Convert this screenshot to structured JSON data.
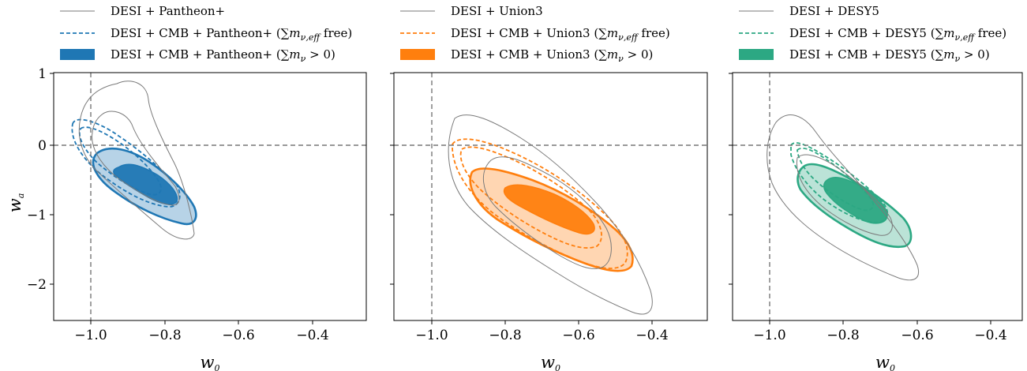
{
  "chart_data": [
    {
      "type": "contour",
      "xlabel": "w0",
      "ylabel": "wa",
      "xlim": [
        -1.1,
        -0.25
      ],
      "ylim": [
        -2.5,
        1.0
      ],
      "xticks": [
        "−1.0",
        "−0.8",
        "−0.6",
        "−0.4"
      ],
      "yticks": [
        "1",
        "0",
        "−1",
        "−2"
      ],
      "reference_lines": {
        "w0": -1.0,
        "wa": 0.0
      },
      "color": "#1f77b4",
      "legend_placement": "above",
      "series": [
        {
          "name": "DESI + Pantheon+",
          "style": "solid-gray-outline",
          "center": [
            -0.86,
            -0.35
          ],
          "outer": {
            "w0_range": [
              -1.03,
              -0.72
            ],
            "wa_range": [
              -1.35,
              0.9
            ]
          }
        },
        {
          "name": "DESI + CMB + Pantheon+ (∑m_ν,eff free)",
          "style": "dashed",
          "center": [
            -0.88,
            -0.24
          ],
          "outer": {
            "w0_range": [
              -1.01,
              -0.75
            ],
            "wa_range": [
              -0.95,
              0.27
            ]
          }
        },
        {
          "name": "DESI + CMB + Pantheon+ (∑m_ν > 0)",
          "style": "filled",
          "center": [
            -0.84,
            -0.58
          ],
          "outer": {
            "w0_range": [
              -0.97,
              -0.71
            ],
            "wa_range": [
              -1.12,
              -0.05
            ]
          }
        }
      ]
    },
    {
      "type": "contour",
      "xlabel": "w0",
      "ylabel": "",
      "xlim": [
        -1.1,
        -0.25
      ],
      "ylim": [
        -2.5,
        1.0
      ],
      "xticks": [
        "−1.0",
        "−0.8",
        "−0.6",
        "−0.4"
      ],
      "reference_lines": {
        "w0": -1.0,
        "wa": 0.0
      },
      "color": "#ff7f0e",
      "legend_placement": "above",
      "series": [
        {
          "name": "DESI + Union3",
          "style": "solid-gray-outline",
          "center": [
            -0.67,
            -1.02
          ],
          "outer": {
            "w0_range": [
              -0.94,
              -0.39
            ],
            "wa_range": [
              -2.4,
              0.4
            ]
          }
        },
        {
          "name": "DESI + CMB + Union3 (∑m_ν,eff free)",
          "style": "dashed",
          "center": [
            -0.66,
            -0.84
          ],
          "outer": {
            "w0_range": [
              -0.93,
              -0.46
            ],
            "wa_range": [
              -1.75,
              0.05
            ]
          }
        },
        {
          "name": "DESI + CMB + Union3 (∑m_ν > 0)",
          "style": "filled",
          "center": [
            -0.69,
            -0.97
          ],
          "outer": {
            "w0_range": [
              -0.9,
              -0.45
            ],
            "wa_range": [
              -1.73,
              -0.3
            ]
          }
        }
      ]
    },
    {
      "type": "contour",
      "xlabel": "w0",
      "ylabel": "",
      "xlim": [
        -1.1,
        -0.25
      ],
      "ylim": [
        -2.5,
        1.0
      ],
      "xticks": [
        "−1.0",
        "−0.8",
        "−0.6",
        "−0.4"
      ],
      "reference_lines": {
        "w0": -1.0,
        "wa": 0.0
      },
      "color": "#2ca883",
      "legend_placement": "above",
      "series": [
        {
          "name": "DESI + DESY5",
          "style": "solid-gray-outline",
          "center": [
            -0.78,
            -0.65
          ],
          "outer": {
            "w0_range": [
              -0.95,
              -0.58
            ],
            "wa_range": [
              -1.85,
              0.47
            ]
          }
        },
        {
          "name": "DESI + CMB + DESY5 (∑m_ν,eff free)",
          "style": "dashed",
          "center": [
            -0.79,
            -0.53
          ],
          "outer": {
            "w0_range": [
              -0.92,
              -0.64
            ],
            "wa_range": [
              -1.25,
              0.03
            ]
          }
        },
        {
          "name": "DESI + CMB + DESY5 (∑m_ν > 0)",
          "style": "filled",
          "center": [
            -0.76,
            -0.78
          ],
          "outer": {
            "w0_range": [
              -0.88,
              -0.62
            ],
            "wa_range": [
              -1.43,
              -0.3
            ]
          }
        }
      ]
    }
  ]
}
